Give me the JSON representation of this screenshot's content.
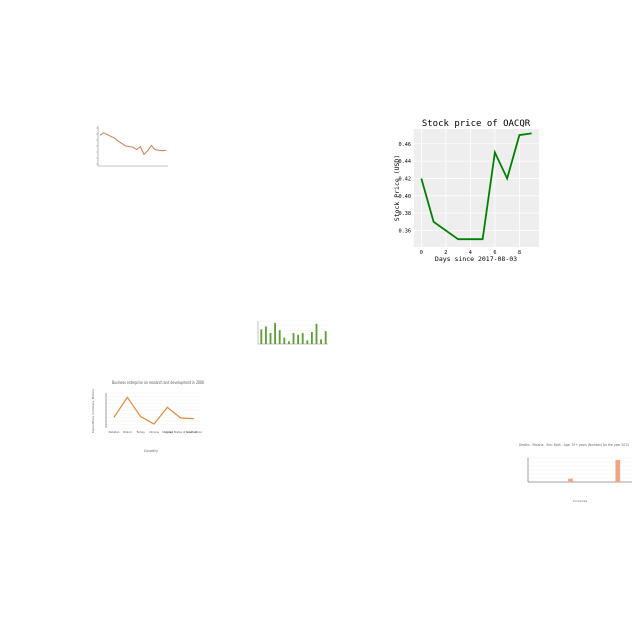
{
  "colors": {
    "page_background": "#ffffff",
    "stock_line": "#008000",
    "stock_plot_background": "#eeeeee",
    "stock_grid": "#ffffff",
    "brown_line": "#c9805a",
    "green_bars": "#5f9e3a",
    "orange_line": "#e08a3c",
    "salmon_bars": "#f0a584",
    "axis_text": "#555555"
  },
  "chart_data": [
    {
      "id": "small-line-top-left",
      "type": "line",
      "title": "",
      "xlabel": "",
      "ylabel": "",
      "x": [
        1,
        2,
        3,
        4,
        5,
        6,
        7,
        8,
        9,
        10,
        11,
        12,
        13,
        14,
        15,
        16,
        17,
        18,
        19
      ],
      "y": [
        4.8,
        5.2,
        4.9,
        4.6,
        4.3,
        3.8,
        3.4,
        3.0,
        2.9,
        2.8,
        2.4,
        2.9,
        1.6,
        2.2,
        3.1,
        2.4,
        2.3,
        2.2,
        2.3
      ],
      "ylim": [
        0,
        6
      ],
      "grid": false
    },
    {
      "id": "stock-price",
      "type": "line",
      "title": "Stock price of OACQR",
      "xlabel": "Days since 2017-08-03",
      "ylabel": "Stock Price (USD)",
      "x": [
        0,
        1,
        2,
        3,
        4,
        5,
        6,
        7,
        8,
        9
      ],
      "y": [
        0.42,
        0.37,
        0.36,
        0.35,
        0.35,
        0.35,
        0.45,
        0.42,
        0.47,
        0.472
      ],
      "xlim": [
        -0.6,
        9.6
      ],
      "ylim": [
        0.341,
        0.477
      ],
      "xticks": [
        0,
        2,
        4,
        6,
        8
      ],
      "yticks": [
        0.36,
        0.38,
        0.4,
        0.42,
        0.44,
        0.46
      ],
      "ytick_labels": [
        "0.36",
        "0.38",
        "0.40",
        "0.42",
        "0.44",
        "0.46"
      ],
      "grid": true
    },
    {
      "id": "small-bar-center",
      "type": "bar",
      "title": "",
      "xlabel": "",
      "ylabel": "",
      "values": [
        3.2,
        3.8,
        2.4,
        4.6,
        3.0,
        1.4,
        0.6,
        2.4,
        2.0,
        2.4,
        0.8,
        2.6,
        4.4,
        1.0,
        2.8
      ],
      "ylim": [
        0,
        5
      ],
      "grid": true
    },
    {
      "id": "business-rd",
      "type": "line",
      "title": "Business enterprise on research and development in 2006",
      "xlabel": "Country",
      "ylabel": "Expenditure (in Dollars, Million)",
      "categories": [
        "Pakistan",
        "Poland",
        "Turkey",
        "Ukraine",
        "Uruguay",
        "United States of America",
        "South Africa"
      ],
      "values": [
        320,
        920,
        340,
        120,
        620,
        300,
        280
      ],
      "ylim": [
        0,
        1050
      ],
      "grid": true
    },
    {
      "id": "malaria-deaths",
      "type": "bar",
      "title": "Deaths - Malaria - Sex: Both - Age: 70+ years (Number) for the year 2015",
      "xlabel": "Countries",
      "ylabel": "",
      "values": [
        0,
        0,
        0,
        0,
        9,
        0,
        0,
        0,
        0,
        60,
        0
      ],
      "ylim": [
        0,
        65
      ],
      "grid": true
    }
  ]
}
